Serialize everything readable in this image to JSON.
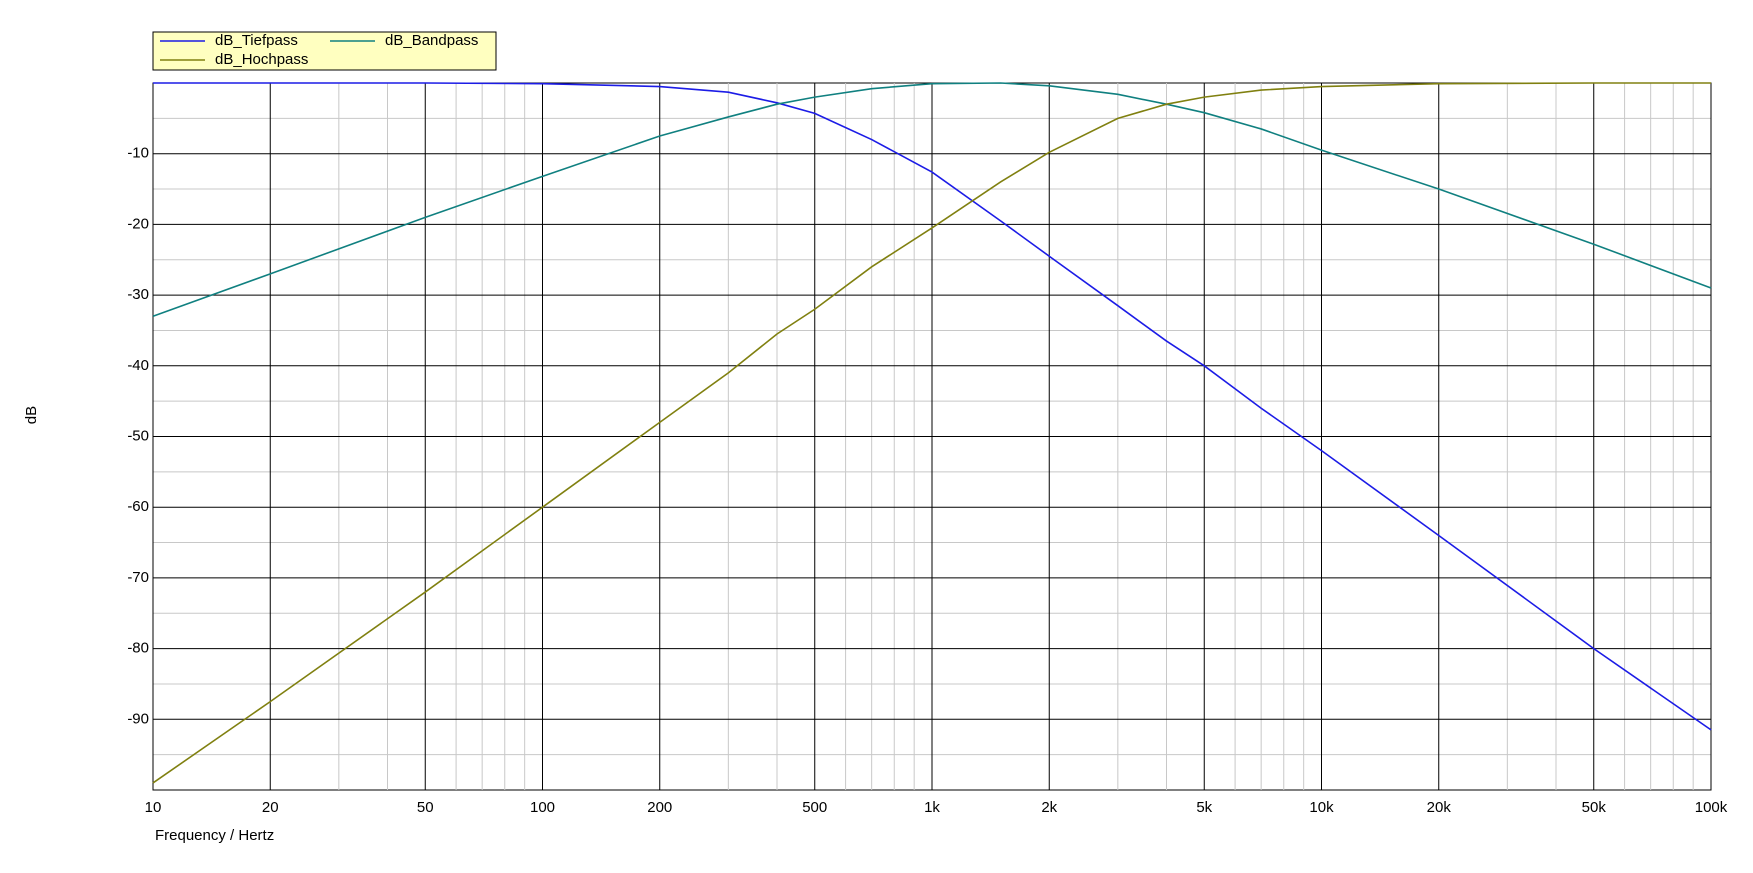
{
  "chart_data": {
    "type": "line",
    "xlabel": "Frequency / Hertz",
    "ylabel": "dB",
    "xscale": "log",
    "grid": true,
    "x": [
      10,
      20,
      50,
      100,
      200,
      300,
      400,
      500,
      700,
      1000,
      1500,
      2000,
      3000,
      4000,
      5000,
      7000,
      10000,
      20000,
      50000,
      100000
    ],
    "series": [
      {
        "name": "dB_Tiefpass",
        "color": "#1c1ce6",
        "values": [
          0,
          0,
          0,
          -0.1,
          -0.5,
          -1.3,
          -2.8,
          -4.3,
          -8,
          -12.6,
          -19.5,
          -24.5,
          -31.5,
          -36.5,
          -40,
          -46,
          -52,
          -64,
          -80,
          -91.5
        ]
      },
      {
        "name": "dB_Bandpass",
        "color": "#108080",
        "values": [
          -33,
          -27,
          -19,
          -13.2,
          -7.5,
          -4.8,
          -3,
          -2,
          -0.8,
          -0.1,
          0,
          -0.4,
          -1.6,
          -3,
          -4.2,
          -6.5,
          -9.5,
          -15,
          -22.8,
          -29
        ]
      },
      {
        "name": "dB_Hochpass",
        "color": "#808010",
        "values": [
          -99,
          -87.5,
          -72,
          -60,
          -48,
          -41,
          -35.5,
          -32,
          -26,
          -20.5,
          -14,
          -9.8,
          -5,
          -3,
          -2,
          -1,
          -0.5,
          -0.1,
          0,
          0
        ]
      }
    ],
    "xlim": [
      10,
      100000
    ],
    "ylim": [
      -100,
      0
    ],
    "xticks": [
      10,
      20,
      50,
      100,
      200,
      500,
      {
        "value": 1000,
        "label": "1k"
      },
      {
        "value": 2000,
        "label": "2k"
      },
      {
        "value": 5000,
        "label": "5k"
      },
      {
        "value": 10000,
        "label": "10k"
      },
      {
        "value": 20000,
        "label": "20k"
      },
      {
        "value": 50000,
        "label": "50k"
      },
      {
        "value": 100000,
        "label": "100k"
      }
    ],
    "xminorticks": [
      30,
      40,
      60,
      70,
      80,
      90,
      300,
      400,
      600,
      700,
      800,
      900,
      3000,
      4000,
      6000,
      7000,
      8000,
      9000,
      30000,
      40000,
      60000,
      70000,
      80000,
      90000
    ],
    "yticks": [
      -90,
      -80,
      -70,
      -60,
      -50,
      -40,
      -30,
      -20,
      -10
    ],
    "yminorticks": [
      -95,
      -85,
      -75,
      -65,
      -55,
      -45,
      -35,
      -25,
      -15,
      -5
    ]
  }
}
